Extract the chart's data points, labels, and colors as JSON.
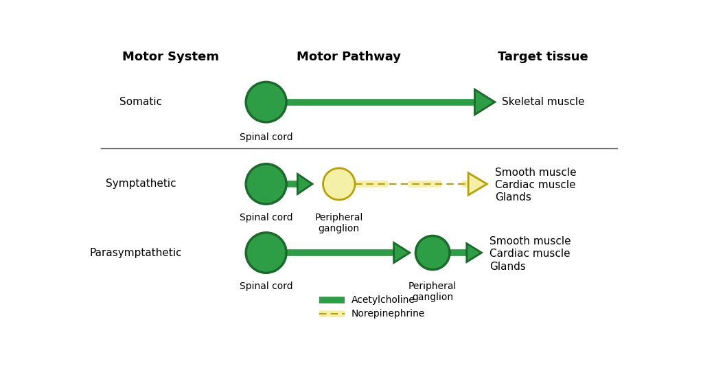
{
  "bg_color": "#ffffff",
  "green_dark": "#1a6b2a",
  "green_fill": "#2d9e45",
  "yellow_fill": "#f5f0a8",
  "yellow_edge": "#b8a000",
  "title_col1": "Motor System",
  "title_col2": "Motor Pathway",
  "title_col3": "Target tissue",
  "row1_label": "Somatic",
  "row2_label": "Symptathetic",
  "row3_label": "Parasymptathetic",
  "row1_target": "Skeletal muscle",
  "row2_target": [
    "Smooth muscle",
    "Cardiac muscle",
    "Glands"
  ],
  "row3_target": [
    "Smooth muscle",
    "Cardiac muscle",
    "Glands"
  ],
  "row1_sub1": "Spinal cord",
  "row2_sub1": "Spinal cord",
  "row2_sub2": [
    "Peripheral",
    "ganglion"
  ],
  "row3_sub1": "Spinal cord",
  "row3_sub2": [
    "Peripheral",
    "ganglion"
  ],
  "legend_item1": "Acetylcholine",
  "legend_item2": "Norepinephrine",
  "font_size_title": 13,
  "font_size_label": 11,
  "font_size_sub": 10
}
